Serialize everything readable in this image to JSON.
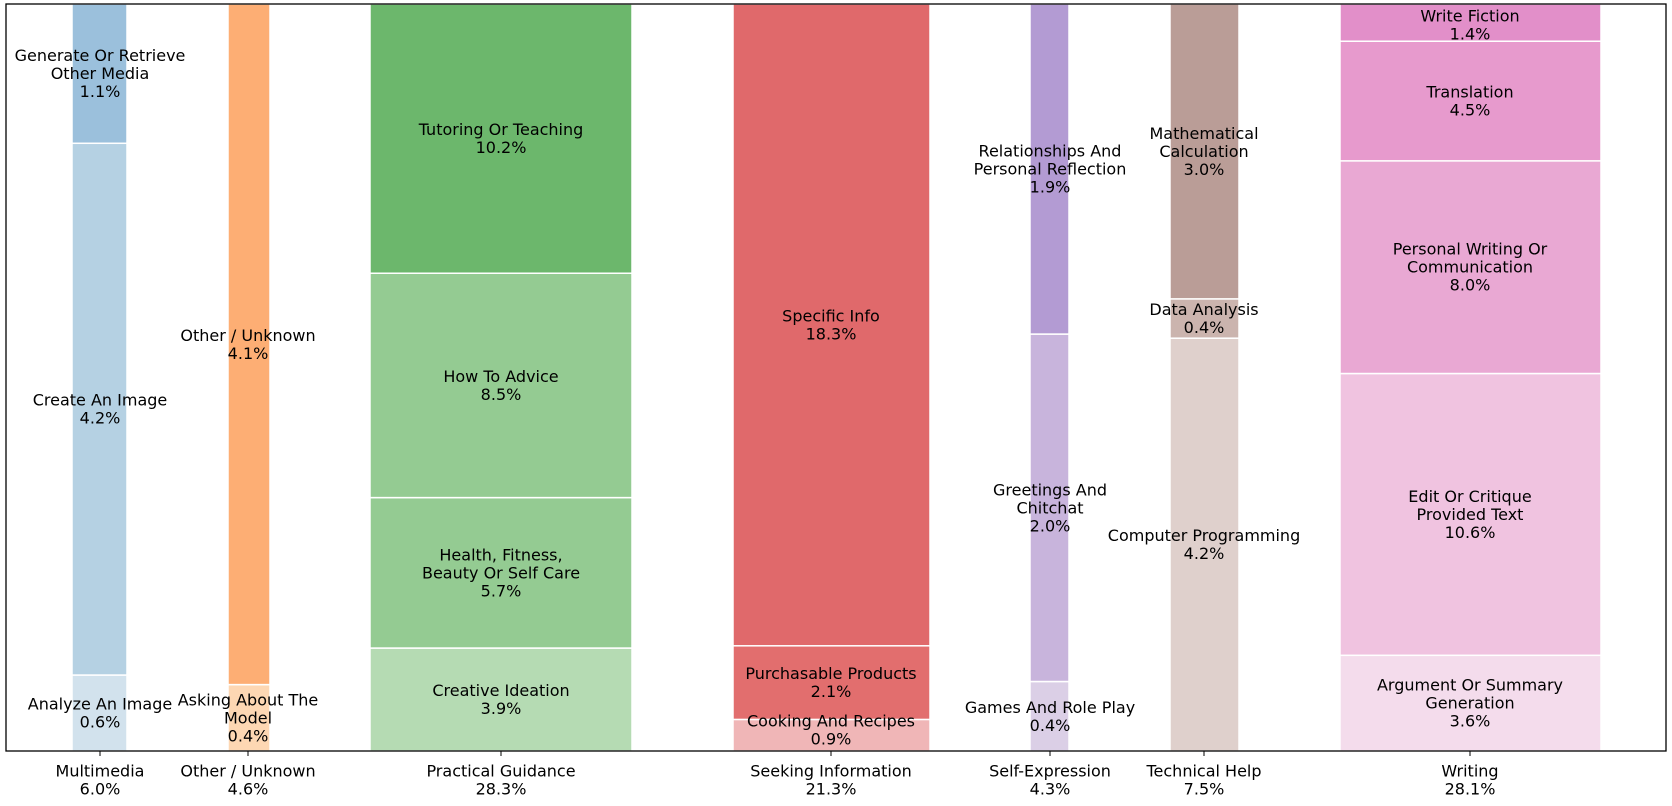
{
  "chart_data": {
    "type": "bar",
    "subtype": "variable-width stacked (marimekko)",
    "title": "",
    "xlabel": "",
    "ylabel": "",
    "grid": false,
    "legend": "none",
    "categories": [
      {
        "name": "Multimedia",
        "total": "6.0%",
        "share": 6.0,
        "segments": [
          {
            "name": "Analyze An Image",
            "label": "Analyze An Image",
            "value": 0.6,
            "value_label": "0.6%",
            "color": "#d2e2ed"
          },
          {
            "name": "Create An Image",
            "label": "Create An Image",
            "value": 4.2,
            "value_label": "4.2%",
            "color": "#b5d1e3"
          },
          {
            "name": "Generate Or Retrieve Other Media",
            "label": "Generate Or Retrieve\nOther Media",
            "value": 1.1,
            "value_label": "1.1%",
            "color": "#9bc0dc"
          }
        ]
      },
      {
        "name": "Other / Unknown",
        "total": "4.6%",
        "share": 4.6,
        "segments": [
          {
            "name": "Asking About The Model",
            "label": "Asking About The\nModel",
            "value": 0.4,
            "value_label": "0.4%",
            "color": "#fdd7b3"
          },
          {
            "name": "Other / Unknown",
            "label": "Other / Unknown",
            "value": 4.1,
            "value_label": "4.1%",
            "color": "#fdae74"
          }
        ]
      },
      {
        "name": "Practical Guidance",
        "total": "28.3%",
        "share": 28.3,
        "segments": [
          {
            "name": "Creative Ideation",
            "label": "Creative Ideation",
            "value": 3.9,
            "value_label": "3.9%",
            "color": "#b5dbb3"
          },
          {
            "name": "Health, Fitness, Beauty Or Self Care",
            "label": "Health, Fitness,\nBeauty Or Self Care",
            "value": 5.7,
            "value_label": "5.7%",
            "color": "#94cb92"
          },
          {
            "name": "How To Advice",
            "label": "How To Advice",
            "value": 8.5,
            "value_label": "8.5%",
            "color": "#94cb92"
          },
          {
            "name": "Tutoring Or Teaching",
            "label": "Tutoring Or Teaching",
            "value": 10.2,
            "value_label": "10.2%",
            "color": "#6cb76c"
          }
        ]
      },
      {
        "name": "Seeking Information",
        "total": "21.3%",
        "share": 21.3,
        "segments": [
          {
            "name": "Cooking And Recipes",
            "label": "Cooking And Recipes",
            "value": 0.9,
            "value_label": "0.9%",
            "color": "#f0b6b7"
          },
          {
            "name": "Purchasable Products",
            "label": "Purchasable Products",
            "value": 2.1,
            "value_label": "2.1%",
            "color": "#e26e6e"
          },
          {
            "name": "Specific Info",
            "label": "Specific Info",
            "value": 18.3,
            "value_label": "18.3%",
            "color": "#e0696b"
          }
        ]
      },
      {
        "name": "Self-Expression",
        "total": "4.3%",
        "share": 4.3,
        "segments": [
          {
            "name": "Games And Role Play",
            "label": "Games And Role Play",
            "value": 0.4,
            "value_label": "0.4%",
            "color": "#dbcfe6"
          },
          {
            "name": "Greetings And Chitchat",
            "label": "Greetings And\nChitchat",
            "value": 2.0,
            "value_label": "2.0%",
            "color": "#c8b4dc"
          },
          {
            "name": "Relationships And Personal Reflection",
            "label": "Relationships And\nPersonal Reflection",
            "value": 1.9,
            "value_label": "1.9%",
            "color": "#b39bd3"
          }
        ]
      },
      {
        "name": "Technical Help",
        "total": "7.5%",
        "share": 7.5,
        "segments": [
          {
            "name": "Computer Programming",
            "label": "Computer Programming",
            "value": 4.2,
            "value_label": "4.2%",
            "color": "#dfd0cc"
          },
          {
            "name": "Data Analysis",
            "label": "Data Analysis",
            "value": 0.4,
            "value_label": "0.4%",
            "color": "#cbb4ae"
          },
          {
            "name": "Mathematical Calculation",
            "label": "Mathematical\nCalculation",
            "value": 3.0,
            "value_label": "3.0%",
            "color": "#ba9d97"
          }
        ]
      },
      {
        "name": "Writing",
        "total": "28.1%",
        "share": 28.1,
        "segments": [
          {
            "name": "Argument Or Summary Generation",
            "label": "Argument Or Summary\nGeneration",
            "value": 3.6,
            "value_label": "3.6%",
            "color": "#f4dcec"
          },
          {
            "name": "Edit Or Critique Provided Text",
            "label": "Edit Or Critique\nProvided Text",
            "value": 10.6,
            "value_label": "10.6%",
            "color": "#f0c3e0"
          },
          {
            "name": "Personal Writing Or Communication",
            "label": "Personal Writing Or\nCommunication",
            "value": 8.0,
            "value_label": "8.0%",
            "color": "#e9a8d3"
          },
          {
            "name": "Translation",
            "label": "Translation",
            "value": 4.5,
            "value_label": "4.5%",
            "color": "#e79acd"
          },
          {
            "name": "Write Fiction",
            "label": "Write Fiction",
            "value": 1.4,
            "value_label": "1.4%",
            "color": "#e28fc9"
          }
        ]
      }
    ]
  }
}
